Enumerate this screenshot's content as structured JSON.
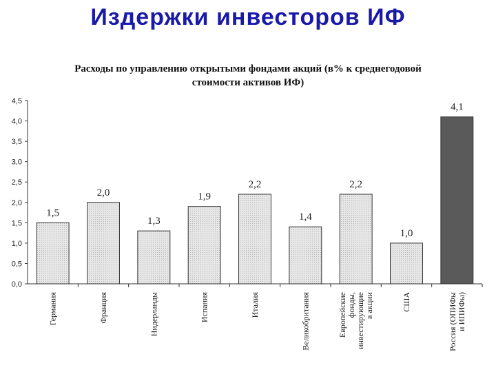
{
  "slide_title": "Издержки инвесторов ИФ",
  "chart_data": {
    "type": "bar",
    "title_line1": "Расходы по управлению открытыми фондами акций (в% к среднегодовой",
    "title_line2": "стоимости активов ИФ)",
    "categories": [
      [
        "Германия"
      ],
      [
        "Франция"
      ],
      [
        "Нидерланды"
      ],
      [
        "Испания"
      ],
      [
        "Италия"
      ],
      [
        "Великобритания"
      ],
      [
        "Европейские",
        "фонды,",
        "инвестирующие",
        "в акции"
      ],
      [
        "США"
      ],
      [
        "Россия (ОПИФы",
        "и ИПИФы)"
      ]
    ],
    "values": [
      1.5,
      2.0,
      1.3,
      1.9,
      2.2,
      1.4,
      2.2,
      1.0,
      4.1
    ],
    "value_labels": [
      "1,5",
      "2,0",
      "1,3",
      "1,9",
      "2,2",
      "1,4",
      "2,2",
      "1,0",
      "4,1"
    ],
    "highlight_index": 8,
    "ylim": [
      0,
      4.5
    ],
    "yticks": [
      "0,0",
      "0,5",
      "1,0",
      "1,5",
      "2,0",
      "2,5",
      "3,0",
      "3,5",
      "4,0",
      "4,5"
    ],
    "grid": false,
    "colors": {
      "bar": "#e0e0e0",
      "highlight": "#5a5a5a",
      "outline": "#333333"
    }
  }
}
